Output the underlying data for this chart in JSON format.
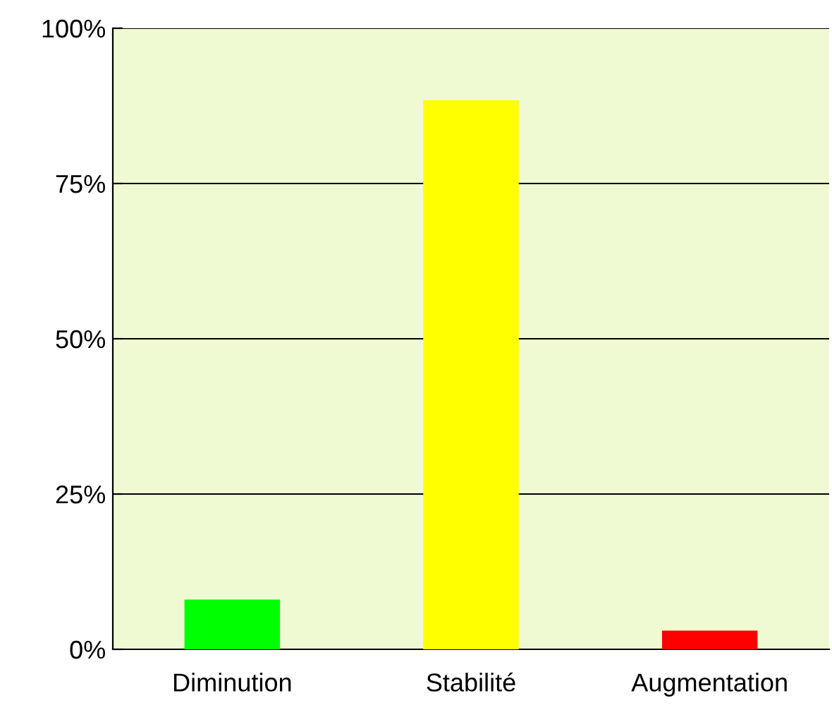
{
  "chart_data": {
    "type": "bar",
    "categories": [
      "Diminution",
      "Stabilité",
      "Augmentation"
    ],
    "values": [
      8.0,
      88.4,
      3.0
    ],
    "colors": [
      "#00ff00",
      "#ffff00",
      "#ff0000"
    ],
    "ylim": [
      0,
      100
    ],
    "yticks": [
      {
        "value": 0,
        "label": "0%"
      },
      {
        "value": 25,
        "label": "25%"
      },
      {
        "value": 50,
        "label": "50%"
      },
      {
        "value": 75,
        "label": "75%"
      },
      {
        "value": 100,
        "label": "100%"
      }
    ],
    "grid": "y",
    "legend": false
  }
}
